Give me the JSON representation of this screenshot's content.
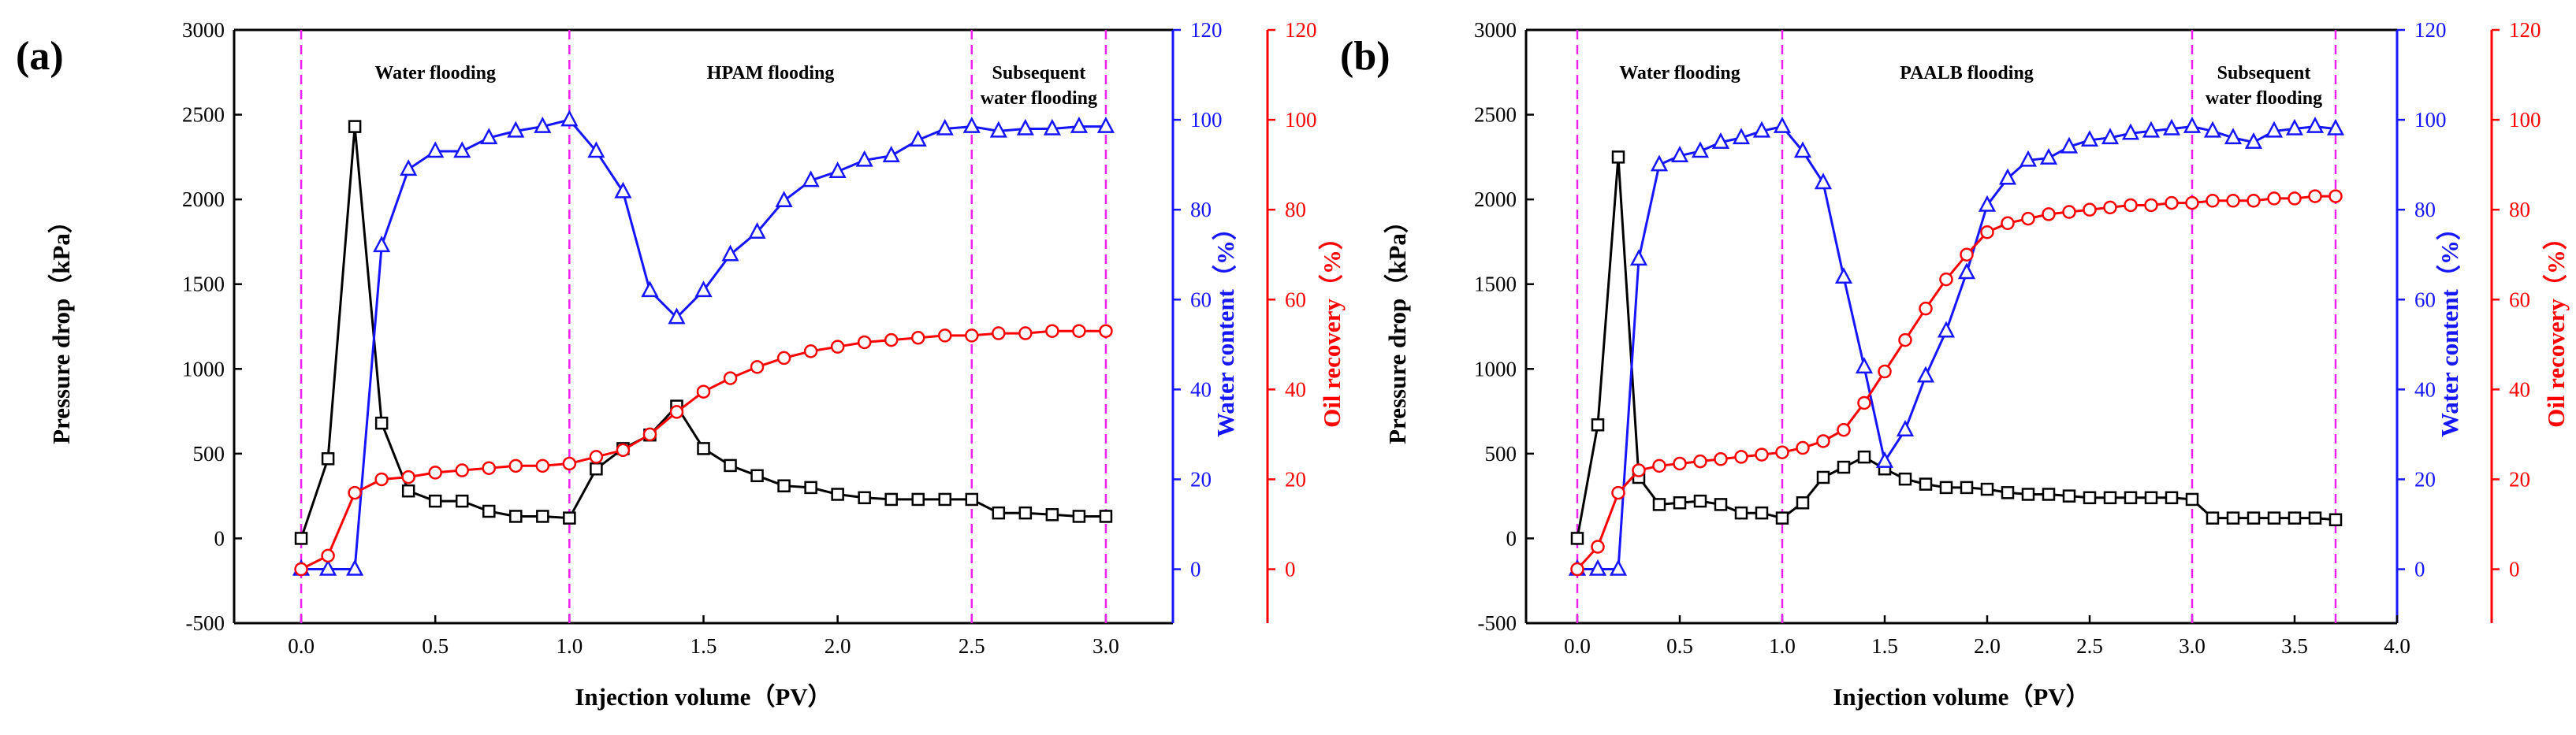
{
  "chart_data": [
    {
      "type": "line",
      "panel_label": "(a)",
      "xlabel": "Injection volume（PV）",
      "ylabel_left": "Pressure drop（kPa）",
      "ylabel_right1": "Water content（%）",
      "ylabel_right2": "Oil recovery（%）",
      "xlim": [
        -0.25,
        3.25
      ],
      "xticks": [
        0.0,
        0.5,
        1.0,
        1.5,
        2.0,
        2.5,
        3.0
      ],
      "xtick_labels": [
        "0.0",
        "0.5",
        "1.0",
        "1.5",
        "2.0",
        "2.5",
        "3.0"
      ],
      "ylim_left": [
        -500,
        3000
      ],
      "yticks_left": [
        -500,
        0,
        500,
        1000,
        1500,
        2000,
        2500,
        3000
      ],
      "ytick_labels_left": [
        "-500",
        "0",
        "500",
        "1000",
        "1500",
        "2000",
        "2500",
        "3000"
      ],
      "ylim_right": [
        -12,
        120
      ],
      "yticks_right": [
        0,
        20,
        40,
        60,
        80,
        100,
        120
      ],
      "ytick_labels_right": [
        "0",
        "20",
        "40",
        "60",
        "80",
        "100",
        "120"
      ],
      "vlines": [
        0.0,
        1.0,
        2.5,
        3.0
      ],
      "regions": [
        {
          "x": 0.5,
          "lines": [
            "Water flooding"
          ]
        },
        {
          "x": 1.75,
          "lines": [
            "HPAM flooding"
          ]
        },
        {
          "x": 2.75,
          "lines": [
            "Subsequent",
            "water flooding"
          ]
        }
      ],
      "series": [
        {
          "name": "Pressure drop",
          "axis": "left",
          "color": "#000000",
          "marker": "square",
          "x": [
            0,
            0.1,
            0.2,
            0.3,
            0.4,
            0.5,
            0.6,
            0.7,
            0.8,
            0.9,
            1.0,
            1.1,
            1.2,
            1.3,
            1.4,
            1.5,
            1.6,
            1.7,
            1.8,
            1.9,
            2.0,
            2.1,
            2.2,
            2.3,
            2.4,
            2.5,
            2.6,
            2.7,
            2.8,
            2.9,
            3.0
          ],
          "y": [
            0,
            470,
            2430,
            680,
            280,
            220,
            220,
            160,
            130,
            130,
            120,
            410,
            530,
            610,
            780,
            530,
            430,
            370,
            310,
            300,
            260,
            240,
            230,
            230,
            230,
            230,
            150,
            150,
            140,
            130,
            130
          ]
        },
        {
          "name": "Water content",
          "axis": "right1",
          "color": "#1515ff",
          "marker": "triangle",
          "x": [
            0,
            0.1,
            0.2,
            0.3,
            0.4,
            0.5,
            0.6,
            0.7,
            0.8,
            0.9,
            1.0,
            1.1,
            1.2,
            1.3,
            1.4,
            1.5,
            1.6,
            1.7,
            1.8,
            1.9,
            2.0,
            2.1,
            2.2,
            2.3,
            2.4,
            2.5,
            2.6,
            2.7,
            2.8,
            2.9,
            3.0
          ],
          "y": [
            0,
            0,
            0,
            72,
            89,
            93,
            93,
            96,
            97.5,
            98.5,
            100,
            93,
            84,
            62,
            56,
            62,
            70,
            75,
            82,
            86.5,
            88.5,
            91,
            92,
            95.5,
            98,
            98.5,
            97.5,
            98,
            98,
            98.5,
            98.5
          ]
        },
        {
          "name": "Oil recovery",
          "axis": "right2",
          "color": "#ff0000",
          "marker": "circle",
          "x": [
            0,
            0.1,
            0.2,
            0.3,
            0.4,
            0.5,
            0.6,
            0.7,
            0.8,
            0.9,
            1.0,
            1.1,
            1.2,
            1.3,
            1.4,
            1.5,
            1.6,
            1.7,
            1.8,
            1.9,
            2.0,
            2.1,
            2.2,
            2.3,
            2.4,
            2.5,
            2.6,
            2.7,
            2.8,
            2.9,
            3.0
          ],
          "y": [
            0,
            3,
            17,
            20,
            20.5,
            21.5,
            22,
            22.5,
            23,
            23,
            23.5,
            25,
            26.5,
            30,
            35,
            39.5,
            42.5,
            45,
            47,
            48.5,
            49.5,
            50.5,
            51,
            51.5,
            52,
            52,
            52.5,
            52.5,
            53,
            53,
            53
          ]
        }
      ]
    },
    {
      "type": "line",
      "panel_label": "(b)",
      "xlabel": "Injection volume（PV）",
      "ylabel_left": "Pressure drop（kPa）",
      "ylabel_right1": "Water content（%）",
      "ylabel_right2": "Oil recovery（%）",
      "xlim": [
        -0.25,
        4.0
      ],
      "xticks": [
        0.0,
        0.5,
        1.0,
        1.5,
        2.0,
        2.5,
        3.0,
        3.5,
        4.0
      ],
      "xtick_labels": [
        "0.0",
        "0.5",
        "1.0",
        "1.5",
        "2.0",
        "2.5",
        "3.0",
        "3.5",
        "4.0"
      ],
      "ylim_left": [
        -500,
        3000
      ],
      "yticks_left": [
        -500,
        0,
        500,
        1000,
        1500,
        2000,
        2500,
        3000
      ],
      "ytick_labels_left": [
        "-500",
        "0",
        "500",
        "1000",
        "1500",
        "2000",
        "2500",
        "3000"
      ],
      "ylim_right": [
        -12,
        120
      ],
      "yticks_right": [
        0,
        20,
        40,
        60,
        80,
        100,
        120
      ],
      "ytick_labels_right": [
        "0",
        "20",
        "40",
        "60",
        "80",
        "100",
        "120"
      ],
      "vlines": [
        0.0,
        1.0,
        3.0,
        3.7
      ],
      "regions": [
        {
          "x": 0.5,
          "lines": [
            "Water flooding"
          ]
        },
        {
          "x": 1.9,
          "lines": [
            "PAALB flooding"
          ]
        },
        {
          "x": 3.35,
          "lines": [
            "Subsequent",
            "water flooding"
          ]
        }
      ],
      "series": [
        {
          "name": "Pressure drop",
          "axis": "left",
          "color": "#000000",
          "marker": "square",
          "x": [
            0,
            0.1,
            0.2,
            0.3,
            0.4,
            0.5,
            0.6,
            0.7,
            0.8,
            0.9,
            1.0,
            1.1,
            1.2,
            1.3,
            1.4,
            1.5,
            1.6,
            1.7,
            1.8,
            1.9,
            2.0,
            2.1,
            2.2,
            2.3,
            2.4,
            2.5,
            2.6,
            2.7,
            2.8,
            2.9,
            3.0,
            3.1,
            3.2,
            3.3,
            3.4,
            3.5,
            3.6,
            3.7
          ],
          "y": [
            0,
            670,
            2250,
            360,
            200,
            210,
            220,
            200,
            150,
            150,
            120,
            210,
            360,
            420,
            480,
            410,
            350,
            320,
            300,
            300,
            290,
            270,
            260,
            260,
            250,
            240,
            240,
            240,
            240,
            240,
            230,
            120,
            120,
            120,
            120,
            120,
            120,
            110
          ]
        },
        {
          "name": "Water content",
          "axis": "right1",
          "color": "#1515ff",
          "marker": "triangle",
          "x": [
            0,
            0.1,
            0.2,
            0.3,
            0.4,
            0.5,
            0.6,
            0.7,
            0.8,
            0.9,
            1.0,
            1.1,
            1.2,
            1.3,
            1.4,
            1.5,
            1.6,
            1.7,
            1.8,
            1.9,
            2.0,
            2.1,
            2.2,
            2.3,
            2.4,
            2.5,
            2.6,
            2.7,
            2.8,
            2.9,
            3.0,
            3.1,
            3.2,
            3.3,
            3.4,
            3.5,
            3.6,
            3.7
          ],
          "y": [
            0,
            0,
            0,
            69,
            90,
            92,
            93,
            95,
            96,
            97.5,
            98.5,
            93,
            86,
            65,
            45,
            24,
            31,
            43,
            53,
            66,
            81,
            87,
            91,
            91.5,
            94,
            95.5,
            96,
            97,
            97.5,
            98,
            98.5,
            97.5,
            96,
            95,
            97.5,
            98,
            98.5,
            98
          ]
        },
        {
          "name": "Oil recovery",
          "axis": "right2",
          "color": "#ff0000",
          "marker": "circle",
          "x": [
            0,
            0.1,
            0.2,
            0.3,
            0.4,
            0.5,
            0.6,
            0.7,
            0.8,
            0.9,
            1.0,
            1.1,
            1.2,
            1.3,
            1.4,
            1.5,
            1.6,
            1.7,
            1.8,
            1.9,
            2.0,
            2.1,
            2.2,
            2.3,
            2.4,
            2.5,
            2.6,
            2.7,
            2.8,
            2.9,
            3.0,
            3.1,
            3.2,
            3.3,
            3.4,
            3.5,
            3.6,
            3.7
          ],
          "y": [
            0,
            5,
            17,
            22,
            23,
            23.5,
            24,
            24.5,
            25,
            25.5,
            26,
            27,
            28.5,
            31,
            37,
            44,
            51,
            58,
            64.5,
            70,
            75,
            77,
            78,
            79,
            79.5,
            80,
            80.5,
            81,
            81,
            81.5,
            81.5,
            82,
            82,
            82,
            82.5,
            82.5,
            83,
            83
          ]
        }
      ]
    }
  ]
}
